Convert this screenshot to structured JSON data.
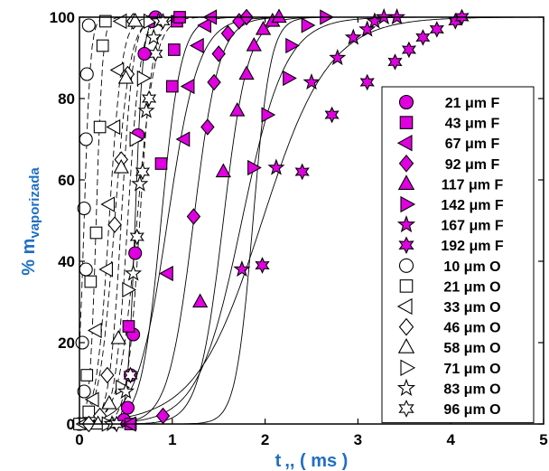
{
  "chart_data": {
    "type": "scatter",
    "title": "",
    "xlabel": "t ,, ( ms )",
    "ylabel_main": "% m",
    "ylabel_sub": "vaporizada",
    "xlim": [
      0,
      5
    ],
    "ylim": [
      0,
      100
    ],
    "xticks": [
      "0",
      "1",
      "2",
      "3",
      "4",
      "5"
    ],
    "yticks": [
      "0",
      "20",
      "40",
      "60",
      "80",
      "100"
    ],
    "grid": false,
    "legend_position": "right",
    "marker_fill_color": "#e000e0",
    "series": [
      {
        "name": "21   μm  F",
        "marker": "circle",
        "filled": true,
        "line": "solid",
        "points": [
          [
            0.48,
            1
          ],
          [
            0.52,
            4
          ],
          [
            0.55,
            12
          ],
          [
            0.58,
            22
          ],
          [
            0.6,
            42
          ],
          [
            0.63,
            71
          ],
          [
            0.7,
            91
          ],
          [
            0.78,
            99
          ],
          [
            0.82,
            100
          ]
        ]
      },
      {
        "name": "43   μm  F",
        "marker": "square",
        "filled": true,
        "line": "solid",
        "points": [
          [
            0.55,
            0
          ],
          [
            0.53,
            24
          ],
          [
            0.88,
            64
          ],
          [
            1.0,
            83
          ],
          [
            1.02,
            92
          ],
          [
            1.05,
            99
          ],
          [
            1.08,
            100
          ]
        ]
      },
      {
        "name": "67   μm  F",
        "marker": "triangle-left",
        "filled": true,
        "line": "solid",
        "points": [
          [
            0.55,
            0
          ],
          [
            0.95,
            37
          ],
          [
            1.13,
            70
          ],
          [
            1.18,
            83
          ],
          [
            1.28,
            93
          ],
          [
            1.36,
            98
          ],
          [
            1.42,
            100
          ]
        ]
      },
      {
        "name": "92   μm  F",
        "marker": "diamond",
        "filled": true,
        "line": "solid",
        "points": [
          [
            0.9,
            2
          ],
          [
            1.23,
            51
          ],
          [
            1.38,
            73
          ],
          [
            1.45,
            84
          ],
          [
            1.5,
            91
          ],
          [
            1.6,
            96
          ],
          [
            1.72,
            99
          ],
          [
            1.8,
            100
          ]
        ]
      },
      {
        "name": "117   μm  F",
        "marker": "triangle-up",
        "filled": true,
        "line": "solid",
        "points": [
          [
            1.3,
            30
          ],
          [
            1.55,
            62
          ],
          [
            1.7,
            77
          ],
          [
            1.8,
            86
          ],
          [
            1.88,
            93
          ],
          [
            1.98,
            97
          ],
          [
            2.08,
            99
          ],
          [
            2.15,
            100
          ]
        ]
      },
      {
        "name": "142   μm  F",
        "marker": "triangle-right",
        "filled": true,
        "line": "solid",
        "points": [
          [
            1.87,
            63
          ],
          [
            2.02,
            76
          ],
          [
            2.25,
            85
          ],
          [
            2.28,
            93
          ],
          [
            2.45,
            98
          ],
          [
            2.65,
            100
          ]
        ]
      },
      {
        "name": "167   μm  F",
        "marker": "star5",
        "filled": true,
        "line": "solid",
        "points": [
          [
            1.75,
            38
          ],
          [
            2.12,
            63
          ],
          [
            2.5,
            84
          ],
          [
            2.78,
            90
          ],
          [
            2.95,
            95
          ],
          [
            3.1,
            97
          ],
          [
            3.18,
            99
          ],
          [
            3.28,
            100
          ],
          [
            3.42,
            100
          ]
        ]
      },
      {
        "name": "192   μm  F",
        "marker": "star6",
        "filled": true,
        "line": "solid",
        "points": [
          [
            1.97,
            39
          ],
          [
            2.4,
            62
          ],
          [
            2.72,
            76
          ],
          [
            3.1,
            84
          ],
          [
            3.4,
            89
          ],
          [
            3.55,
            92
          ],
          [
            3.7,
            95
          ],
          [
            3.85,
            97
          ],
          [
            4.05,
            99
          ],
          [
            4.12,
            100
          ]
        ]
      },
      {
        "name": "10   μm  O",
        "marker": "circle",
        "filled": false,
        "line": "dashed",
        "points": [
          [
            0.0,
            0
          ],
          [
            0.05,
            8
          ],
          [
            0.03,
            20
          ],
          [
            0.07,
            38
          ],
          [
            0.05,
            53
          ],
          [
            0.07,
            70
          ],
          [
            0.08,
            86
          ],
          [
            0.1,
            98
          ]
        ]
      },
      {
        "name": "21   μm  O",
        "marker": "square",
        "filled": false,
        "line": "dashed",
        "points": [
          [
            0.0,
            0
          ],
          [
            0.1,
            3
          ],
          [
            0.08,
            12
          ],
          [
            0.12,
            35
          ],
          [
            0.18,
            47
          ],
          [
            0.22,
            73
          ],
          [
            0.25,
            93
          ],
          [
            0.28,
            99
          ]
        ]
      },
      {
        "name": "33   μm  O",
        "marker": "triangle-left",
        "filled": false,
        "line": "dashed",
        "points": [
          [
            0.05,
            0
          ],
          [
            0.15,
            6
          ],
          [
            0.18,
            23
          ],
          [
            0.3,
            38
          ],
          [
            0.32,
            54
          ],
          [
            0.38,
            73
          ],
          [
            0.42,
            87
          ],
          [
            0.45,
            99
          ]
        ]
      },
      {
        "name": "46   μm  O",
        "marker": "diamond",
        "filled": false,
        "line": "dashed",
        "points": [
          [
            0.1,
            0
          ],
          [
            0.22,
            2
          ],
          [
            0.3,
            12
          ],
          [
            0.38,
            49
          ],
          [
            0.45,
            65
          ],
          [
            0.52,
            86
          ],
          [
            0.58,
            99
          ]
        ]
      },
      {
        "name": "58   μm  O",
        "marker": "triangle-up",
        "filled": false,
        "line": "dashed",
        "points": [
          [
            0.2,
            0
          ],
          [
            0.32,
            5
          ],
          [
            0.42,
            21
          ],
          [
            0.45,
            63
          ],
          [
            0.5,
            85
          ],
          [
            0.6,
            99
          ]
        ]
      },
      {
        "name": "71   μm  O",
        "marker": "triangle-right",
        "filled": false,
        "line": "dashed",
        "points": [
          [
            0.3,
            0
          ],
          [
            0.45,
            9
          ],
          [
            0.52,
            33
          ],
          [
            0.6,
            70
          ],
          [
            0.68,
            85
          ],
          [
            0.75,
            99
          ]
        ]
      },
      {
        "name": "83   μm  O",
        "marker": "star5",
        "filled": false,
        "line": "dashed",
        "points": [
          [
            0.35,
            0
          ],
          [
            0.5,
            8
          ],
          [
            0.58,
            37
          ],
          [
            0.65,
            59
          ],
          [
            0.72,
            77
          ],
          [
            0.8,
            95
          ],
          [
            0.85,
            99
          ]
        ]
      },
      {
        "name": "96   μm  O",
        "marker": "star6",
        "filled": false,
        "line": "dashed",
        "points": [
          [
            0.4,
            0
          ],
          [
            0.55,
            12
          ],
          [
            0.62,
            46
          ],
          [
            0.68,
            62
          ],
          [
            0.75,
            80
          ],
          [
            0.82,
            91
          ],
          [
            0.9,
            99
          ]
        ]
      }
    ]
  }
}
